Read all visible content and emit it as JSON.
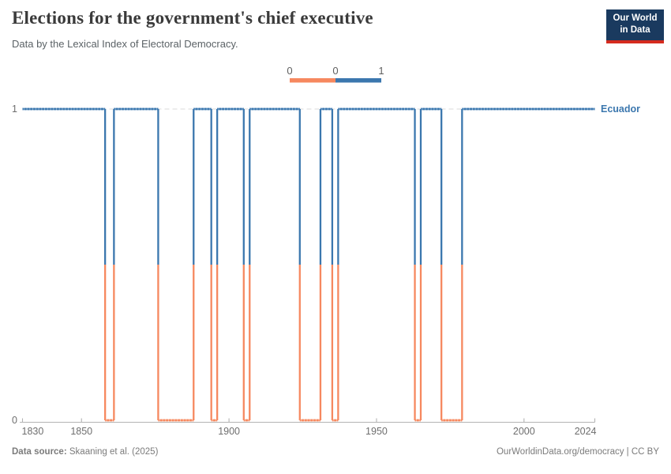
{
  "header": {
    "title": "Elections for the government's chief executive",
    "subtitle": "Data by the Lexical Index of Electoral Democracy.",
    "logo": {
      "line1": "Our World",
      "line2": "in Data"
    }
  },
  "legend": {
    "labels": [
      "0",
      "0",
      "1"
    ],
    "segments": [
      {
        "value": 0,
        "color": "#F6885F"
      },
      {
        "value": 1,
        "color": "#3B77AE"
      }
    ]
  },
  "chart_data": {
    "type": "line",
    "subtype": "step",
    "title": "Elections for the government's chief executive",
    "entity": "Ecuador",
    "x_range": [
      1830,
      2024
    ],
    "ylim": [
      0,
      1
    ],
    "x_ticks": [
      "1830",
      "1850",
      "1900",
      "1950",
      "2000",
      "2024"
    ],
    "y_ticks": [
      "0",
      "1"
    ],
    "grid": "dashed line at y=1 only",
    "legend_position": "top-center",
    "series": [
      {
        "name": "Ecuador",
        "color_value1": "#3B77AE",
        "color_value1_light": "#85ADD2",
        "color_value0": "#F6885F",
        "color_value0_light": "#FBBFA4",
        "runs": [
          {
            "start": 1830,
            "end": 1857,
            "value": 1
          },
          {
            "start": 1858,
            "end": 1860,
            "value": 0
          },
          {
            "start": 1861,
            "end": 1875,
            "value": 1
          },
          {
            "start": 1876,
            "end": 1887,
            "value": 0
          },
          {
            "start": 1888,
            "end": 1893,
            "value": 1
          },
          {
            "start": 1894,
            "end": 1895,
            "value": 0
          },
          {
            "start": 1896,
            "end": 1904,
            "value": 1
          },
          {
            "start": 1905,
            "end": 1906,
            "value": 0
          },
          {
            "start": 1907,
            "end": 1923,
            "value": 1
          },
          {
            "start": 1924,
            "end": 1930,
            "value": 0
          },
          {
            "start": 1931,
            "end": 1934,
            "value": 1
          },
          {
            "start": 1935,
            "end": 1936,
            "value": 0
          },
          {
            "start": 1937,
            "end": 1962,
            "value": 1
          },
          {
            "start": 1963,
            "end": 1964,
            "value": 0
          },
          {
            "start": 1965,
            "end": 1971,
            "value": 1
          },
          {
            "start": 1972,
            "end": 1978,
            "value": 0
          },
          {
            "start": 1979,
            "end": 2024,
            "value": 1
          }
        ]
      }
    ]
  },
  "colors": {
    "axis": "#b3b3b3",
    "tick_label": "#6e6e6e",
    "legend_label": "#5e5e5e",
    "gridline": "#d9d9d9",
    "logo_navy": "#1a3a5f",
    "logo_red": "#d52b1e"
  },
  "footer": {
    "source_label": "Data source:",
    "source_text": "Skaaning et al. (2025)",
    "right": "OurWorldinData.org/democracy | CC BY"
  }
}
